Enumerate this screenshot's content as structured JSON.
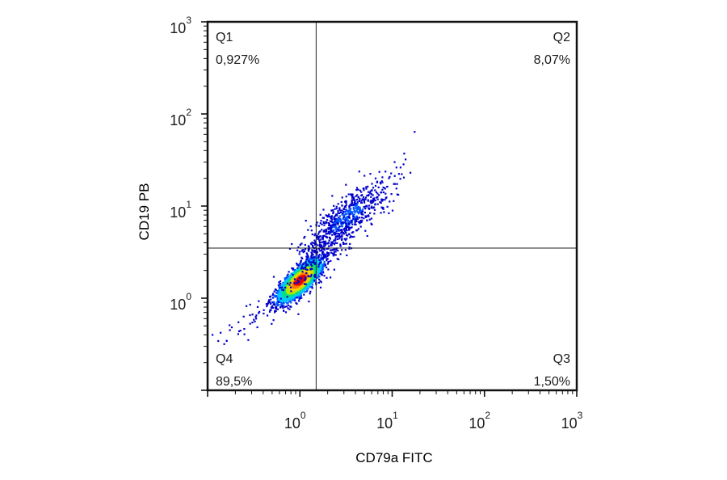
{
  "chart_data": {
    "type": "scatter",
    "subtype": "flow-cytometry-density-dot-plot",
    "title": "",
    "xlabel": "CD79a FITC",
    "ylabel": "CD19 PB",
    "x_scale": "log",
    "y_scale": "log",
    "xlim": [
      0.1,
      1000
    ],
    "ylim": [
      0.1,
      1000
    ],
    "x_ticks": [
      {
        "base": "10",
        "exp": "0",
        "value": 1
      },
      {
        "base": "10",
        "exp": "1",
        "value": 10
      },
      {
        "base": "10",
        "exp": "2",
        "value": 100
      },
      {
        "base": "10",
        "exp": "3",
        "value": 1000
      }
    ],
    "y_ticks": [
      {
        "base": "10",
        "exp": "0",
        "value": 1
      },
      {
        "base": "10",
        "exp": "1",
        "value": 10
      },
      {
        "base": "10",
        "exp": "2",
        "value": 100
      },
      {
        "base": "10",
        "exp": "3",
        "value": 1000
      }
    ],
    "gate": {
      "x": 1.5,
      "y": 3.5
    },
    "quadrants": [
      {
        "name": "Q1",
        "percent": "0,927%",
        "position": "top-left"
      },
      {
        "name": "Q2",
        "percent": "8,07%",
        "position": "top-right"
      },
      {
        "name": "Q3",
        "percent": "1,50%",
        "position": "bottom-right"
      },
      {
        "name": "Q4",
        "percent": "89,5%",
        "position": "bottom-left"
      }
    ],
    "populations": [
      {
        "name": "",
        "center_x": 1.0,
        "center_y": 1.55,
        "density": "high"
      },
      {
        "name": "",
        "center_x": 3.3,
        "center_y": 7.5,
        "density": "medium"
      }
    ],
    "colormap": [
      "#0000cc",
      "#0055ff",
      "#00c8ff",
      "#00e08a",
      "#b4e600",
      "#ffd200",
      "#ff7800",
      "#e60000"
    ],
    "grid": false
  }
}
